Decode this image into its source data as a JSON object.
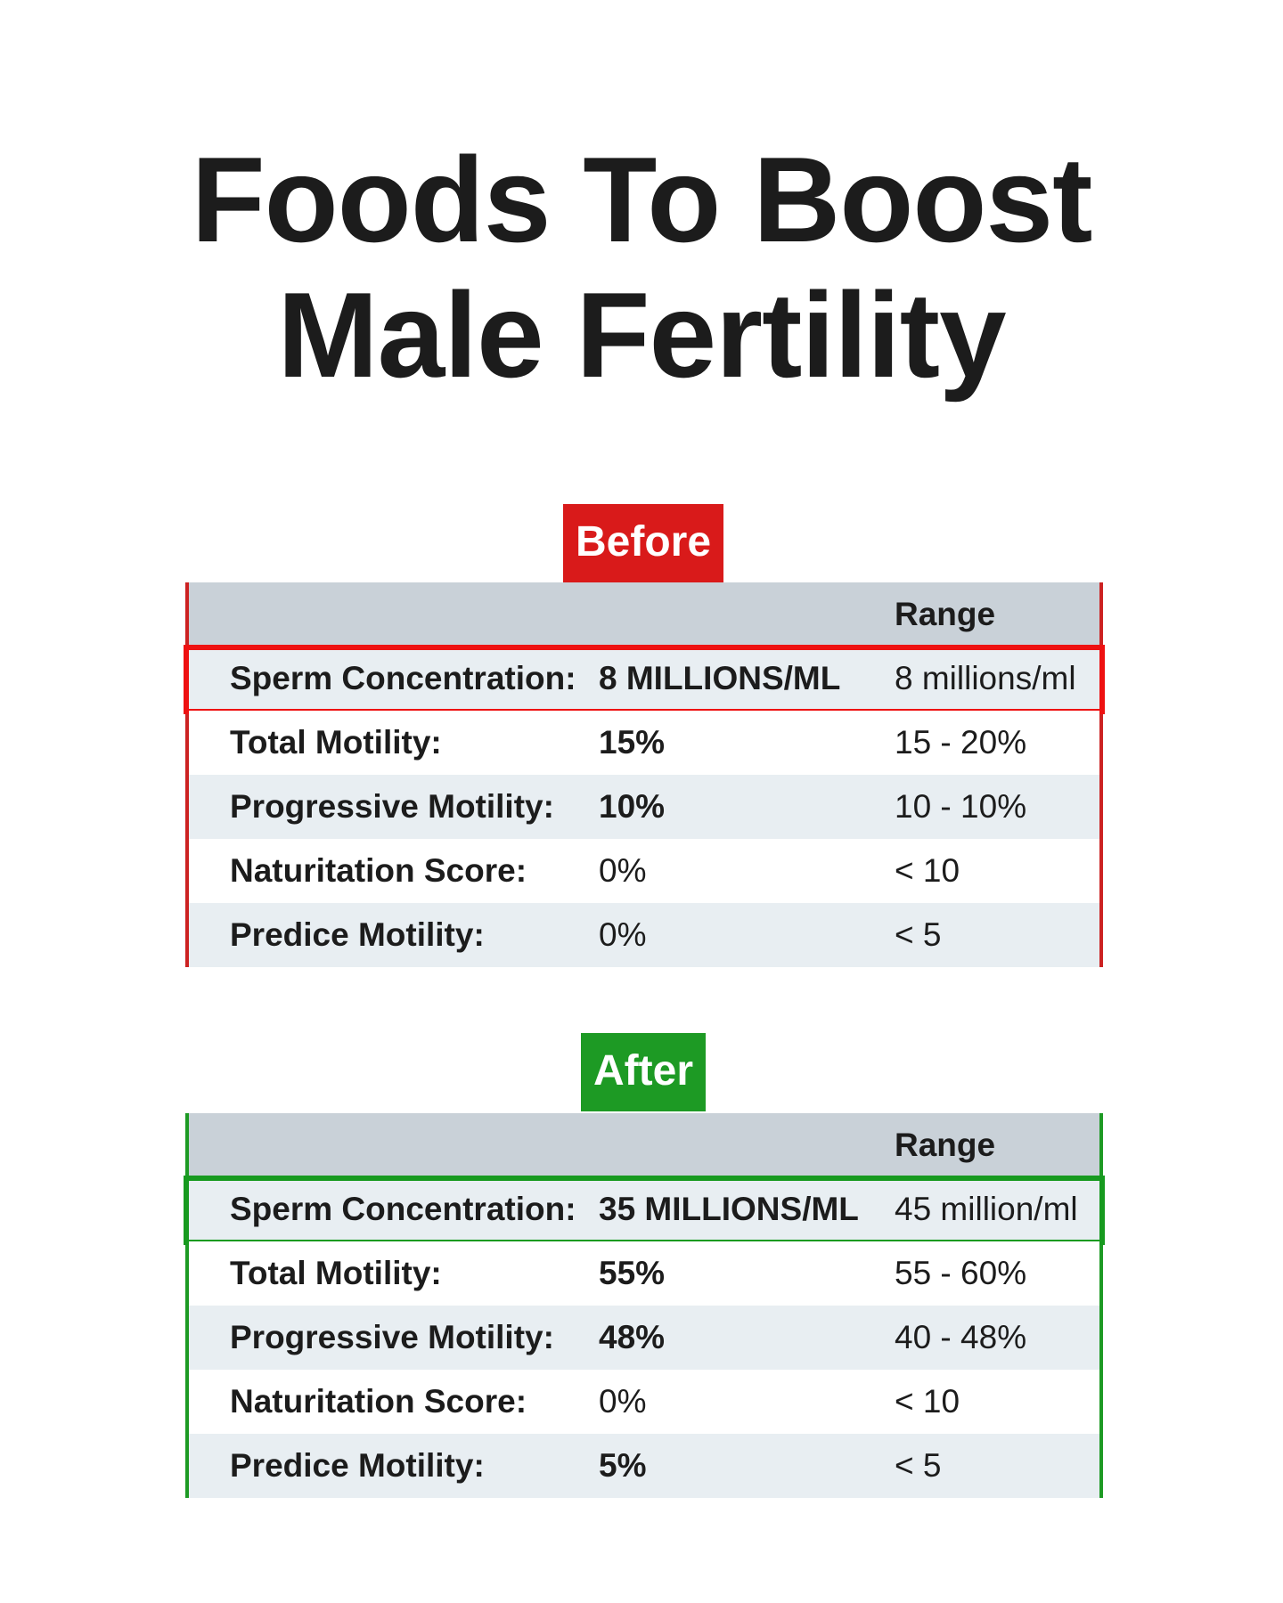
{
  "title": {
    "line1": "Foods To Boost",
    "line2": "Male Fertility"
  },
  "colors": {
    "before_accent": "#d91a1a",
    "after_accent": "#1d9a24",
    "header_bg": "#c9d1d8",
    "shaded_row_bg": "#e8eef2"
  },
  "before": {
    "badge": "Before",
    "range_header": "Range",
    "rows": [
      {
        "label": "Sperm Concentration:",
        "value": "8 MILLIONS/ML",
        "range": "8 millions/ml"
      },
      {
        "label": "Total Motility:",
        "value": "15%",
        "range": "15 - 20%"
      },
      {
        "label": "Progressive Motility:",
        "value": "10%",
        "range": "10 - 10%"
      },
      {
        "label": "Naturitation Score:",
        "value": "0%",
        "range": "< 10"
      },
      {
        "label": "Predice Motility:",
        "value": "0%",
        "range": "< 5"
      }
    ]
  },
  "after": {
    "badge": "After",
    "range_header": "Range",
    "rows": [
      {
        "label": "Sperm Concentration:",
        "value": "35 MILLIONS/ML",
        "range": "45 million/ml"
      },
      {
        "label": "Total Motility:",
        "value": "55%",
        "range": "55 - 60%"
      },
      {
        "label": "Progressive Motility:",
        "value": "48%",
        "range": "40 - 48%"
      },
      {
        "label": "Naturitation Score:",
        "value": "0%",
        "range": "< 10"
      },
      {
        "label": "Predice Motility:",
        "value": "5%",
        "range": "< 5"
      }
    ]
  }
}
